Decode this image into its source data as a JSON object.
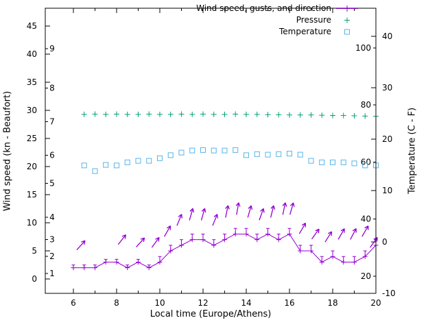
{
  "chart_data": {
    "type": "line",
    "title": "",
    "xlabel": "Local time (Europe/Athens)",
    "ylabel_left": "Wind speed (kn - Beaufort)",
    "ylabel_right": "Temperature (C - F)",
    "x_range": [
      4.7,
      20
    ],
    "y_left_range_kn": [
      -2.56,
      48.2
    ],
    "y_right_range_c": [
      -10,
      45.5
    ],
    "x_major_ticks": [
      6,
      8,
      10,
      12,
      14,
      16,
      18,
      20
    ],
    "x_minor_ticks": [
      7,
      9,
      11,
      13,
      15,
      17,
      19
    ],
    "left_ticks_kn": [
      0,
      5,
      10,
      15,
      20,
      25,
      30,
      35,
      40,
      45
    ],
    "beaufort_labels": [
      {
        "label": "1",
        "kn": 1
      },
      {
        "label": "2",
        "kn": 4
      },
      {
        "label": "3",
        "kn": 7
      },
      {
        "label": "4",
        "kn": 11
      },
      {
        "label": "5",
        "kn": 17
      },
      {
        "label": "6",
        "kn": 22
      },
      {
        "label": "7",
        "kn": 28
      },
      {
        "label": "8",
        "kn": 34
      },
      {
        "label": "9",
        "kn": 41
      }
    ],
    "right_ticks_c": [
      -10,
      0,
      10,
      20,
      30,
      40
    ],
    "fahrenheit_labels": [
      {
        "label": "20",
        "f": 20
      },
      {
        "label": "40",
        "f": 40
      },
      {
        "label": "60",
        "f": 60
      },
      {
        "label": "80",
        "f": 80
      },
      {
        "label": "100",
        "f": 100
      }
    ],
    "colors": {
      "wind": "#9400d3",
      "pressure": "#009e73",
      "temperature": "#56b4e9",
      "axis": "#000000"
    },
    "legend": [
      {
        "label": "Wind speed, gusts, and direction",
        "series": "wind"
      },
      {
        "label": "Pressure",
        "series": "pressure"
      },
      {
        "label": "Temperature",
        "series": "temperature"
      }
    ],
    "series": {
      "wind": {
        "times": [
          6,
          6.5,
          7,
          7.5,
          8,
          8.5,
          9,
          9.5,
          10,
          10.5,
          11,
          11.5,
          12,
          12.5,
          13,
          13.5,
          14,
          14.5,
          15,
          15.5,
          16,
          16.5,
          17,
          17.5,
          18,
          18.5,
          19,
          19.5,
          20
        ],
        "speeds_kn": [
          2,
          2,
          2,
          3,
          3,
          2,
          3,
          2,
          3,
          5,
          6,
          7,
          7,
          6,
          7,
          8,
          8,
          7,
          8,
          7,
          8,
          5,
          5,
          3,
          4,
          3,
          3,
          4,
          6
        ],
        "gusts_kn": [
          2.5,
          2.5,
          2.5,
          3.5,
          3.5,
          2.5,
          3.5,
          2.5,
          4,
          6,
          7,
          8,
          8,
          7,
          8,
          9,
          9,
          8,
          9,
          8,
          9,
          6,
          6,
          4,
          5,
          4,
          4,
          5,
          7
        ]
      },
      "wind_direction_arrows": [
        {
          "t": 6.35,
          "kn": 6.0,
          "deg": 42
        },
        {
          "t": 8.25,
          "kn": 7.0,
          "deg": 38
        },
        {
          "t": 9.1,
          "kn": 6.5,
          "deg": 42
        },
        {
          "t": 9.8,
          "kn": 6.5,
          "deg": 36
        },
        {
          "t": 10.35,
          "kn": 8.5,
          "deg": 30
        },
        {
          "t": 10.9,
          "kn": 10.5,
          "deg": 22
        },
        {
          "t": 11.45,
          "kn": 11.5,
          "deg": 16
        },
        {
          "t": 12.0,
          "kn": 11.5,
          "deg": 16
        },
        {
          "t": 12.55,
          "kn": 10.5,
          "deg": 22
        },
        {
          "t": 13.1,
          "kn": 12.0,
          "deg": 12
        },
        {
          "t": 13.6,
          "kn": 12.5,
          "deg": 10
        },
        {
          "t": 14.15,
          "kn": 12.0,
          "deg": 16
        },
        {
          "t": 14.7,
          "kn": 11.5,
          "deg": 20
        },
        {
          "t": 15.2,
          "kn": 12.0,
          "deg": 14
        },
        {
          "t": 15.75,
          "kn": 12.5,
          "deg": 12
        },
        {
          "t": 16.1,
          "kn": 12.5,
          "deg": 16
        },
        {
          "t": 16.6,
          "kn": 9.0,
          "deg": 30
        },
        {
          "t": 17.2,
          "kn": 8.0,
          "deg": 36
        },
        {
          "t": 17.8,
          "kn": 7.5,
          "deg": 32
        },
        {
          "t": 18.4,
          "kn": 8.0,
          "deg": 30
        },
        {
          "t": 18.95,
          "kn": 8.0,
          "deg": 28
        },
        {
          "t": 19.5,
          "kn": 8.5,
          "deg": 30
        },
        {
          "t": 19.9,
          "kn": 6.5,
          "deg": 36
        }
      ],
      "pressure": {
        "times": [
          6.5,
          7,
          7.5,
          8,
          8.5,
          9,
          9.5,
          10,
          10.5,
          11,
          11.5,
          12,
          12.5,
          13,
          13.5,
          14,
          14.5,
          15,
          15.5,
          16,
          16.5,
          17,
          17.5,
          18,
          18.5,
          19,
          19.5,
          20
        ],
        "values_left_scale": [
          29.3,
          29.35,
          29.3,
          29.35,
          29.3,
          29.3,
          29.35,
          29.3,
          29.3,
          29.35,
          29.3,
          29.35,
          29.3,
          29.3,
          29.35,
          29.3,
          29.3,
          29.25,
          29.25,
          29.2,
          29.2,
          29.2,
          29.15,
          29.1,
          29.1,
          29.05,
          29.0,
          28.95
        ]
      },
      "temperature": {
        "times": [
          6.5,
          7,
          7.5,
          8,
          8.5,
          9,
          9.5,
          10,
          10.5,
          11,
          11.5,
          12,
          12.5,
          13,
          13.5,
          14,
          14.5,
          15,
          15.5,
          16,
          16.5,
          17,
          17.5,
          18,
          18.5,
          19,
          19.5,
          20
        ],
        "values_c": [
          14.9,
          13.8,
          15.0,
          14.9,
          15.5,
          15.8,
          15.8,
          16.3,
          16.9,
          17.4,
          17.8,
          17.9,
          17.8,
          17.8,
          17.9,
          16.9,
          17.1,
          17.0,
          17.1,
          17.2,
          17.0,
          15.8,
          15.5,
          15.5,
          15.5,
          15.3,
          14.9,
          14.9
        ]
      }
    }
  }
}
